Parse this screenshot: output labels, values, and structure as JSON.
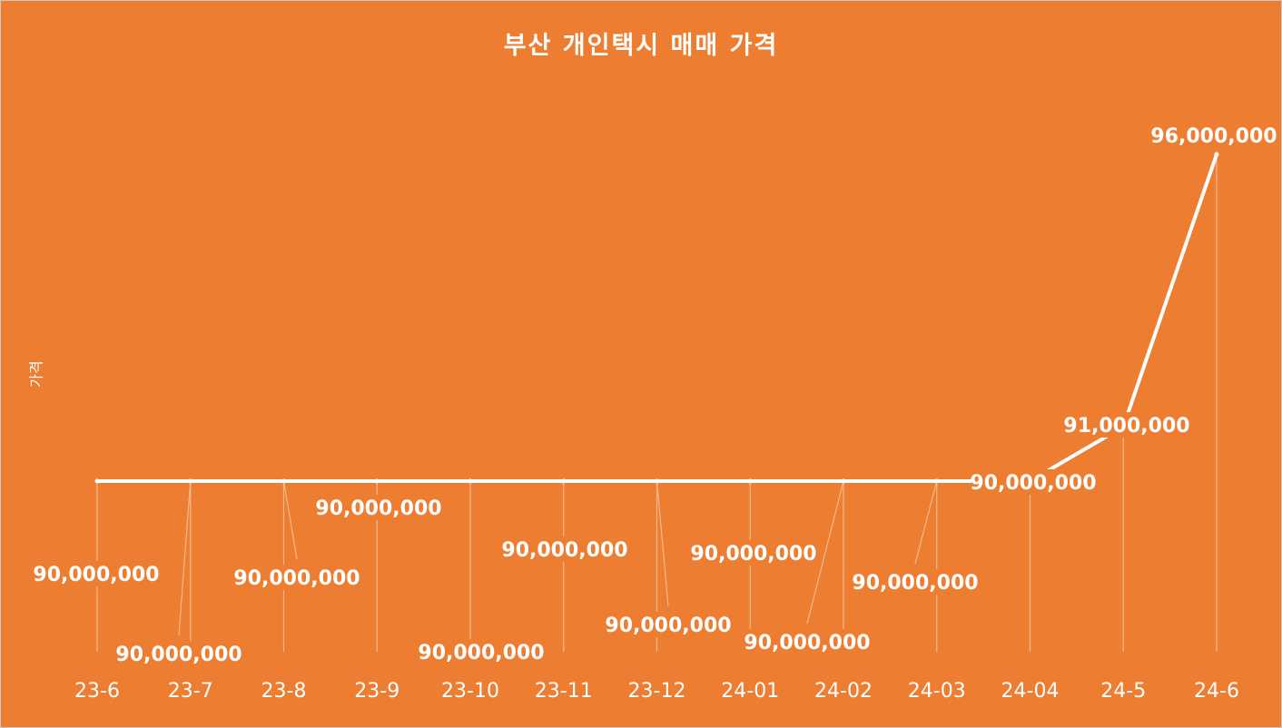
{
  "chart_data": {
    "type": "line",
    "title": "부산 개인택시 매매 가격",
    "ylabel": "가격",
    "xlabel": "",
    "categories": [
      "23-6",
      "23-7",
      "23-8",
      "23-9",
      "23-10",
      "23-11",
      "23-12",
      "24-01",
      "24-02",
      "24-03",
      "24-04",
      "24-5",
      "24-6"
    ],
    "series": [
      {
        "values": [
          90000000,
          90000000,
          90000000,
          90000000,
          90000000,
          90000000,
          90000000,
          90000000,
          90000000,
          90000000,
          90000000,
          91000000,
          96000000
        ],
        "data_labels": [
          "90,000,000",
          "90,000,000",
          "90,000,000",
          "90,000,000",
          "90,000,000",
          "90,000,000",
          "90,000,000",
          "90,000,000",
          "90,000,000",
          "90,000,000",
          "90,000,000",
          "91,000,000",
          "96,000,000"
        ]
      }
    ],
    "grid": false,
    "legend": "none",
    "colors": {
      "background": "#ed7d31",
      "line": "#ffffff",
      "text": "#ffffff",
      "leader": "#f6c3a0"
    }
  }
}
